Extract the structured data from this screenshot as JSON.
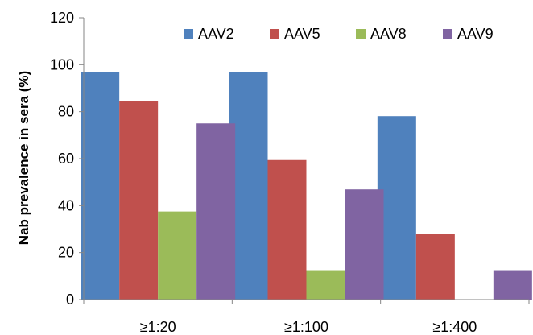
{
  "chart_data": {
    "type": "bar",
    "title": "",
    "xlabel": "",
    "ylabel": "Nab prevalence in sera (%)",
    "categories": [
      "≥1:20",
      "≥1:100",
      "≥1:400"
    ],
    "ylim": [
      0,
      120
    ],
    "yticks": [
      0,
      20,
      40,
      60,
      80,
      100,
      120
    ],
    "grid": false,
    "legend_position": "top-right",
    "series": [
      {
        "name": "AAV2",
        "color": "#4f81bd",
        "values": [
          96.9,
          96.9,
          78.1
        ]
      },
      {
        "name": "AAV5",
        "color": "#c0504d",
        "values": [
          84.4,
          59.4,
          28.1
        ]
      },
      {
        "name": "AAV8",
        "color": "#9bbb59",
        "values": [
          37.5,
          12.5,
          0
        ]
      },
      {
        "name": "AAV9",
        "color": "#8064a2",
        "values": [
          75.0,
          46.9,
          12.5
        ]
      }
    ]
  }
}
